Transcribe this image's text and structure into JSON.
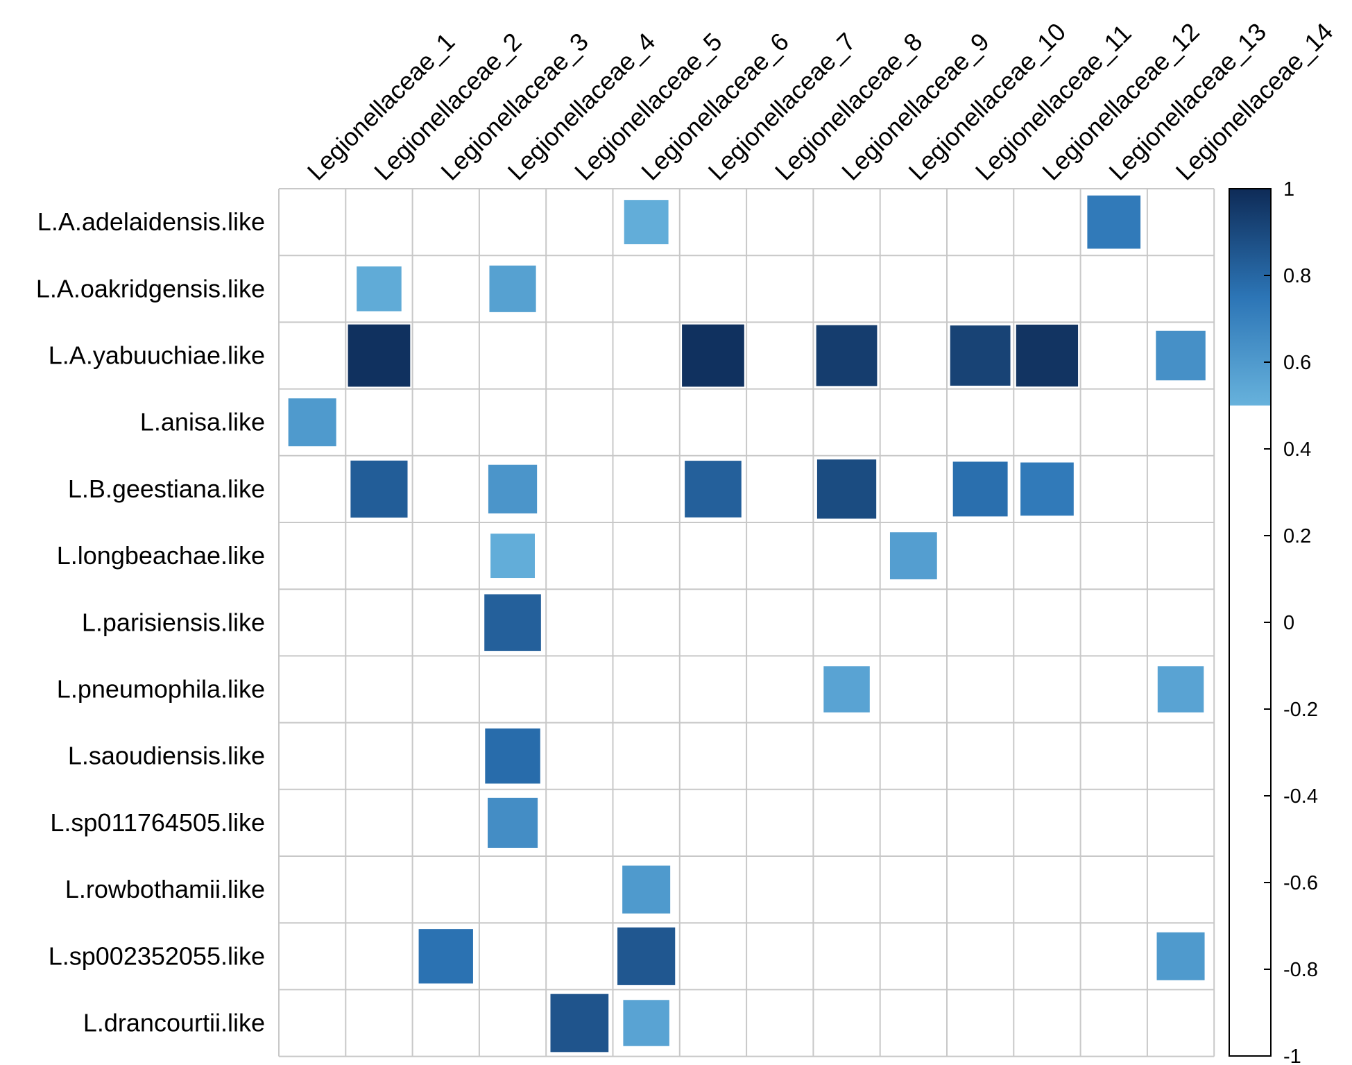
{
  "chart_data": {
    "type": "heatmap",
    "title": "",
    "columns": [
      "Legionellaceae_1",
      "Legionellaceae_2",
      "Legionellaceae_3",
      "Legionellaceae_4",
      "Legionellaceae_5",
      "Legionellaceae_6",
      "Legionellaceae_7",
      "Legionellaceae_8",
      "Legionellaceae_9",
      "Legionellaceae_10",
      "Legionellaceae_11",
      "Legionellaceae_12",
      "Legionellaceae_13",
      "Legionellaceae_14"
    ],
    "rows": [
      "L.A.adelaidensis.like",
      "L.A.oakridgensis.like",
      "L.A.yabuuchiae.like",
      "L.anisa.like",
      "L.B.geestiana.like",
      "L.longbeachae.like",
      "L.parisiensis.like",
      "L.pneumophila.like",
      "L.saoudiensis.like",
      "L.sp011764505.like",
      "L.rowbothamii.like",
      "L.sp002352055.like",
      "L.drancourtii.like"
    ],
    "values": [
      [
        0,
        0,
        0,
        0,
        0,
        0.52,
        0,
        0,
        0,
        0,
        0,
        0,
        0.73,
        0
      ],
      [
        0,
        0.53,
        0,
        0.57,
        0,
        0,
        0,
        0,
        0,
        0,
        0,
        0,
        0,
        0
      ],
      [
        0,
        0.98,
        0,
        0,
        0,
        0,
        0.98,
        0,
        0.94,
        0,
        0.92,
        0.97,
        0,
        0.64
      ],
      [
        0.6,
        0,
        0,
        0,
        0,
        0,
        0,
        0,
        0,
        0,
        0,
        0,
        0,
        0
      ],
      [
        0,
        0.83,
        0,
        0.62,
        0,
        0,
        0.82,
        0,
        0.89,
        0,
        0.77,
        0.73,
        0,
        0
      ],
      [
        0,
        0,
        0,
        0.52,
        0,
        0,
        0,
        0,
        0,
        0.58,
        0,
        0,
        0,
        0
      ],
      [
        0,
        0,
        0,
        0.82,
        0,
        0,
        0,
        0,
        0,
        0,
        0,
        0,
        0,
        0
      ],
      [
        0,
        0,
        0,
        0,
        0,
        0,
        0,
        0,
        0.56,
        0,
        0,
        0,
        0,
        0.56
      ],
      [
        0,
        0,
        0,
        0.78,
        0,
        0,
        0,
        0,
        0,
        0,
        0,
        0,
        0,
        0
      ],
      [
        0,
        0,
        0,
        0.65,
        0,
        0,
        0,
        0,
        0,
        0,
        0,
        0,
        0,
        0
      ],
      [
        0,
        0,
        0,
        0,
        0,
        0.6,
        0,
        0,
        0,
        0,
        0,
        0,
        0,
        0
      ],
      [
        0,
        0,
        0.76,
        0,
        0,
        0.85,
        0,
        0,
        0,
        0,
        0,
        0,
        0,
        0.6
      ],
      [
        0,
        0,
        0,
        0,
        0.86,
        0.56,
        0,
        0,
        0,
        0,
        0,
        0,
        0,
        0
      ]
    ],
    "colorbar": {
      "range": [
        -1,
        1
      ],
      "ticks": [
        "1",
        "0.8",
        "0.6",
        "0.4",
        "0.2",
        "0",
        "-0.2",
        "-0.4",
        "-0.6",
        "-0.8",
        "-1"
      ],
      "tick_values": [
        1,
        0.8,
        0.6,
        0.4,
        0.2,
        0,
        -0.2,
        -0.4,
        -0.6,
        -0.8,
        -1
      ],
      "blank_below": 0.5
    },
    "colors": {
      "high": "#0e2b57",
      "mid": "#2c75b6",
      "low": "#67b2dc",
      "grid": "#c8c8c8",
      "empty": "#ffffff"
    }
  }
}
